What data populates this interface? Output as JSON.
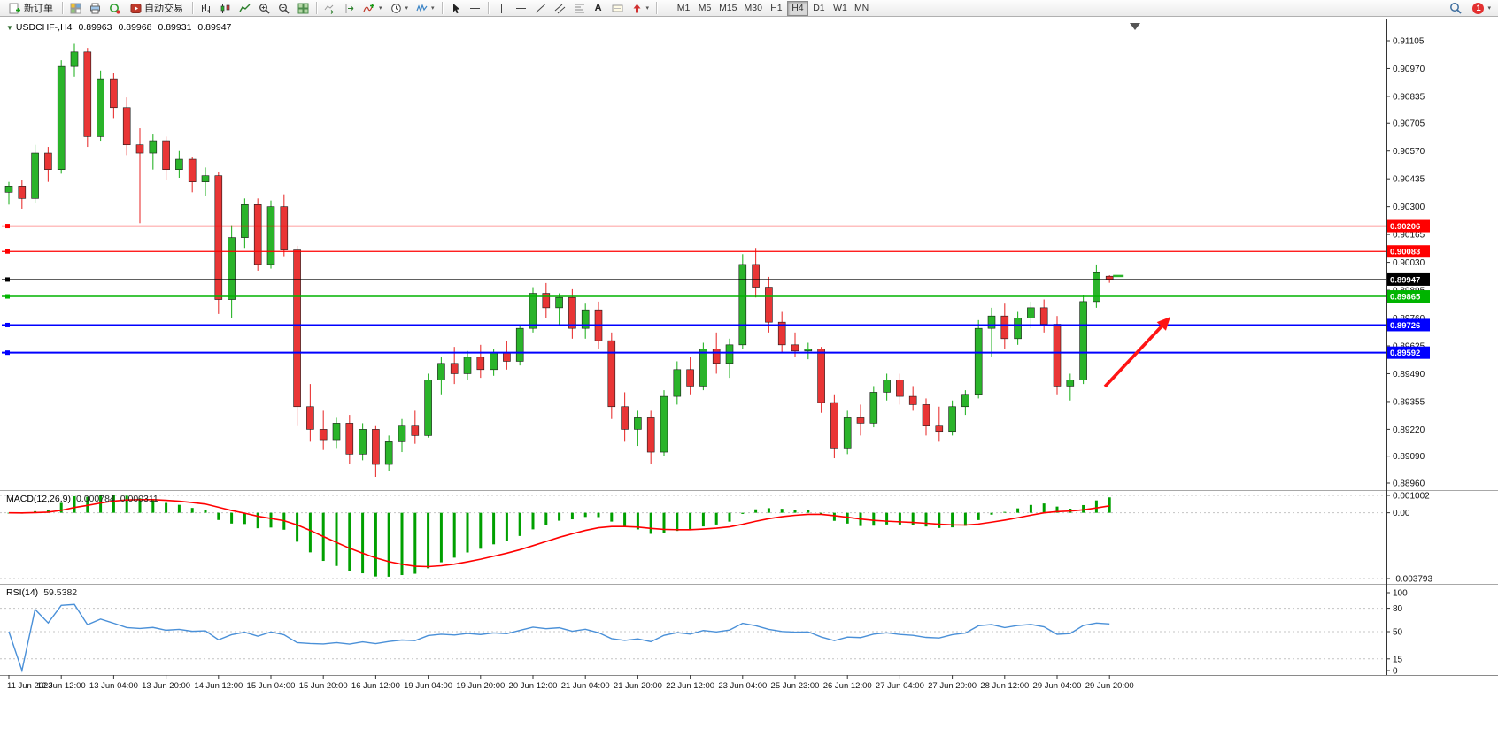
{
  "toolbar": {
    "new_order": "新订单",
    "autotrading": "自动交易",
    "timeframes": [
      "M1",
      "M5",
      "M15",
      "M30",
      "H1",
      "H4",
      "D1",
      "W1",
      "MN"
    ],
    "active_timeframe": "H4",
    "notification_count": "1"
  },
  "title": {
    "symbol": "USDCHF-,H4",
    "open": "0.89963",
    "high": "0.89968",
    "low": "0.89931",
    "close": "0.89947"
  },
  "macd": {
    "name": "MACD(12,26,9)",
    "value_main": "0.000784",
    "value_signal": "0.000311",
    "axis_labels": [
      "0.001002",
      "0.00",
      "-0.003793"
    ],
    "axis_values": [
      0.001002,
      0,
      -0.003793
    ],
    "max": 0.001002,
    "min": -0.003793
  },
  "rsi": {
    "name": "RSI(14)",
    "value": "59.5382",
    "axis_labels": [
      "100",
      "80",
      "50",
      "15",
      "0"
    ],
    "axis_values": [
      100,
      80,
      50,
      15,
      0
    ],
    "level_lines": [
      80,
      50,
      15
    ]
  },
  "chart_data": {
    "type": "candlestick",
    "symbol": "USDCHF-",
    "timeframe": "H4",
    "ylim": [
      0.8896,
      0.91105
    ],
    "colors": {
      "bull": "#2ab42a",
      "bear": "#e93535",
      "macd_hist": "#00a000",
      "macd_signal": "#ff0000",
      "rsi_line": "#4a90d8",
      "arrow": "#ff1414"
    },
    "price_axis": [
      "0.91105",
      "0.90970",
      "0.90835",
      "0.90705",
      "0.90570",
      "0.90435",
      "0.90300",
      "0.90165",
      "0.90030",
      "0.89895",
      "0.89760",
      "0.89625",
      "0.89490",
      "0.89355",
      "0.89220",
      "0.89090",
      "0.88960"
    ],
    "time_axis": [
      "11 Jun 2023",
      "12 Jun 12:00",
      "13 Jun 04:00",
      "13 Jun 20:00",
      "14 Jun 12:00",
      "15 Jun 04:00",
      "15 Jun 20:00",
      "16 Jun 12:00",
      "19 Jun 04:00",
      "19 Jun 20:00",
      "20 Jun 12:00",
      "21 Jun 04:00",
      "21 Jun 20:00",
      "22 Jun 12:00",
      "23 Jun 04:00",
      "25 Jun 23:00",
      "26 Jun 12:00",
      "27 Jun 04:00",
      "27 Jun 20:00",
      "28 Jun 12:00",
      "29 Jun 04:00",
      "29 Jun 20:00"
    ],
    "levels": [
      {
        "label": "0.90206",
        "color": "#ff0000",
        "width": 1.3,
        "name": "resistance-line-upper"
      },
      {
        "label": "0.90083",
        "color": "#ff0000",
        "width": 1.3,
        "name": "resistance-line-lower"
      },
      {
        "label": "0.89947",
        "color": "#000000",
        "width": 1,
        "name": "bid-price-line"
      },
      {
        "label": "0.89865",
        "color": "#00b400",
        "width": 1.5,
        "name": "green-level-line"
      },
      {
        "label": "0.89726",
        "color": "#0000ff",
        "width": 2,
        "name": "support-line-upper"
      },
      {
        "label": "0.89592",
        "color": "#0000ff",
        "width": 2,
        "name": "support-line-lower"
      }
    ],
    "candles": [
      [
        0.9037,
        0.9042,
        0.9031,
        0.904
      ],
      [
        0.904,
        0.9043,
        0.9029,
        0.9034
      ],
      [
        0.9034,
        0.906,
        0.9032,
        0.9056
      ],
      [
        0.9056,
        0.9059,
        0.9042,
        0.9048
      ],
      [
        0.9048,
        0.9101,
        0.9046,
        0.9098
      ],
      [
        0.9098,
        0.9109,
        0.9093,
        0.9105
      ],
      [
        0.9105,
        0.9107,
        0.9059,
        0.9064
      ],
      [
        0.9064,
        0.9096,
        0.9062,
        0.9092
      ],
      [
        0.9092,
        0.9095,
        0.9073,
        0.9078
      ],
      [
        0.9078,
        0.9083,
        0.9055,
        0.906
      ],
      [
        0.906,
        0.9068,
        0.9022,
        0.9056
      ],
      [
        0.9056,
        0.9065,
        0.9048,
        0.9062
      ],
      [
        0.9062,
        0.9064,
        0.9043,
        0.9048
      ],
      [
        0.9048,
        0.9057,
        0.9044,
        0.9053
      ],
      [
        0.9053,
        0.9054,
        0.9037,
        0.9042
      ],
      [
        0.9042,
        0.9049,
        0.9035,
        0.9045
      ],
      [
        0.9045,
        0.9047,
        0.8978,
        0.8985
      ],
      [
        0.8985,
        0.9021,
        0.8976,
        0.9015
      ],
      [
        0.9015,
        0.9034,
        0.901,
        0.9031
      ],
      [
        0.9031,
        0.9034,
        0.8999,
        0.9002
      ],
      [
        0.9002,
        0.9033,
        0.9,
        0.903
      ],
      [
        0.903,
        0.9036,
        0.9006,
        0.9009
      ],
      [
        0.9009,
        0.9011,
        0.8924,
        0.8933
      ],
      [
        0.8933,
        0.8944,
        0.8916,
        0.8922
      ],
      [
        0.8922,
        0.8931,
        0.8912,
        0.8917
      ],
      [
        0.8917,
        0.8928,
        0.8913,
        0.8925
      ],
      [
        0.8925,
        0.8929,
        0.8905,
        0.891
      ],
      [
        0.891,
        0.8925,
        0.8907,
        0.8922
      ],
      [
        0.8922,
        0.8924,
        0.8899,
        0.8905
      ],
      [
        0.8905,
        0.8919,
        0.8902,
        0.8916
      ],
      [
        0.8916,
        0.8927,
        0.8911,
        0.8924
      ],
      [
        0.8924,
        0.8931,
        0.8915,
        0.8919
      ],
      [
        0.8919,
        0.8949,
        0.8918,
        0.8946
      ],
      [
        0.8946,
        0.8957,
        0.8939,
        0.8954
      ],
      [
        0.8954,
        0.8962,
        0.8944,
        0.8949
      ],
      [
        0.8949,
        0.896,
        0.8946,
        0.8957
      ],
      [
        0.8957,
        0.8963,
        0.8947,
        0.8951
      ],
      [
        0.8951,
        0.8961,
        0.8948,
        0.8959
      ],
      [
        0.8959,
        0.8965,
        0.8951,
        0.8955
      ],
      [
        0.8955,
        0.8973,
        0.8953,
        0.8971
      ],
      [
        0.8971,
        0.8991,
        0.8969,
        0.8988
      ],
      [
        0.8988,
        0.8993,
        0.8976,
        0.8981
      ],
      [
        0.8981,
        0.8988,
        0.8973,
        0.8986
      ],
      [
        0.8986,
        0.899,
        0.8966,
        0.8971
      ],
      [
        0.8971,
        0.8983,
        0.8966,
        0.898
      ],
      [
        0.898,
        0.8984,
        0.8961,
        0.8965
      ],
      [
        0.8965,
        0.8969,
        0.8927,
        0.8933
      ],
      [
        0.8933,
        0.894,
        0.8916,
        0.8922
      ],
      [
        0.8922,
        0.8931,
        0.8914,
        0.8928
      ],
      [
        0.8928,
        0.8931,
        0.8905,
        0.8911
      ],
      [
        0.8911,
        0.8941,
        0.8909,
        0.8938
      ],
      [
        0.8938,
        0.8955,
        0.8934,
        0.8951
      ],
      [
        0.8951,
        0.8957,
        0.8939,
        0.8943
      ],
      [
        0.8943,
        0.8964,
        0.8941,
        0.8961
      ],
      [
        0.8961,
        0.8969,
        0.8949,
        0.8954
      ],
      [
        0.8954,
        0.8966,
        0.8947,
        0.8963
      ],
      [
        0.8963,
        0.9007,
        0.8961,
        0.9002
      ],
      [
        0.9002,
        0.901,
        0.8986,
        0.8991
      ],
      [
        0.8991,
        0.8996,
        0.8969,
        0.8974
      ],
      [
        0.8974,
        0.8979,
        0.8959,
        0.8963
      ],
      [
        0.8963,
        0.8969,
        0.8957,
        0.896
      ],
      [
        0.896,
        0.8964,
        0.8956,
        0.8961
      ],
      [
        0.8961,
        0.8962,
        0.893,
        0.8935
      ],
      [
        0.8935,
        0.8939,
        0.8908,
        0.8913
      ],
      [
        0.8913,
        0.8931,
        0.891,
        0.8928
      ],
      [
        0.8928,
        0.8934,
        0.8919,
        0.8925
      ],
      [
        0.8925,
        0.8943,
        0.8923,
        0.894
      ],
      [
        0.894,
        0.8949,
        0.8936,
        0.8946
      ],
      [
        0.8946,
        0.8949,
        0.8934,
        0.8938
      ],
      [
        0.8938,
        0.8943,
        0.8931,
        0.8934
      ],
      [
        0.8934,
        0.8937,
        0.8919,
        0.8924
      ],
      [
        0.8924,
        0.8933,
        0.8916,
        0.8921
      ],
      [
        0.8921,
        0.8936,
        0.8919,
        0.8933
      ],
      [
        0.8933,
        0.8941,
        0.8929,
        0.8939
      ],
      [
        0.8939,
        0.8975,
        0.8937,
        0.8971
      ],
      [
        0.8971,
        0.8981,
        0.8957,
        0.8977
      ],
      [
        0.8977,
        0.8983,
        0.8961,
        0.8966
      ],
      [
        0.8966,
        0.8979,
        0.8963,
        0.8976
      ],
      [
        0.8976,
        0.8984,
        0.8971,
        0.8981
      ],
      [
        0.8981,
        0.8985,
        0.8969,
        0.8973
      ],
      [
        0.8973,
        0.8977,
        0.8939,
        0.8943
      ],
      [
        0.8943,
        0.8949,
        0.8936,
        0.8946
      ],
      [
        0.8946,
        0.8987,
        0.8944,
        0.8984
      ],
      [
        0.8984,
        0.9002,
        0.8981,
        0.8998
      ],
      [
        0.89963,
        0.89968,
        0.89931,
        0.89947
      ]
    ]
  }
}
